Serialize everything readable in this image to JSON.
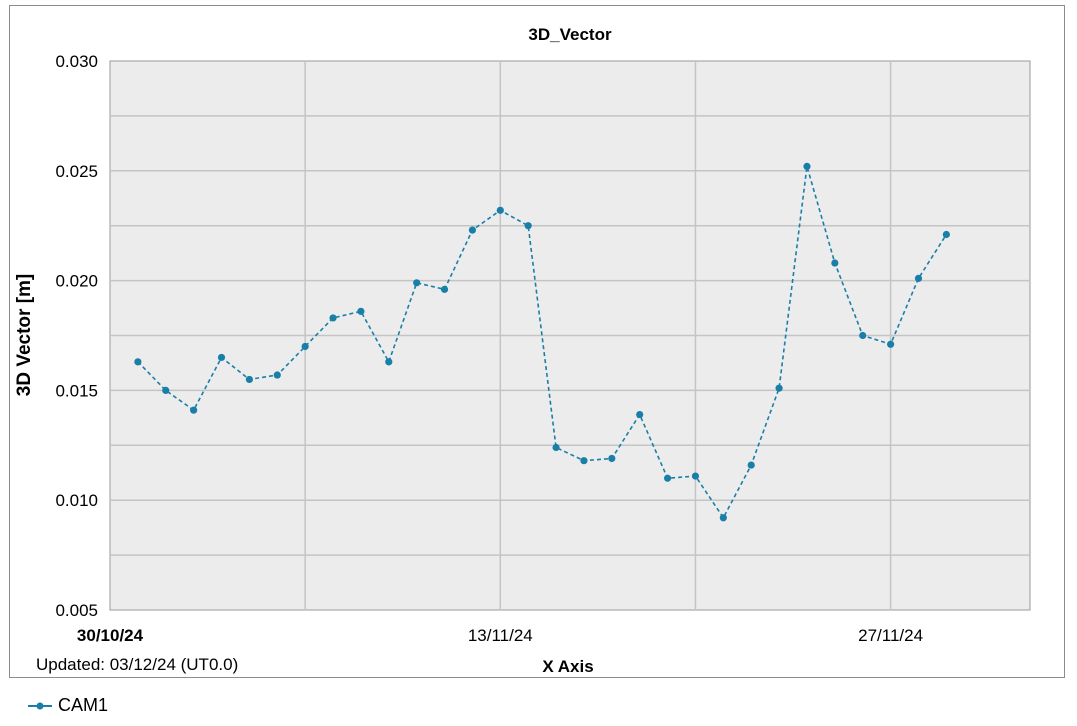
{
  "chart_data": {
    "type": "line",
    "title": "3D_Vector",
    "xlabel": "X Axis",
    "ylabel": "3D Vector [m]",
    "footnote": "Updated: 03/12/24 (UT0.0)",
    "ylim": [
      0.005,
      0.03
    ],
    "y_ticks": [
      "0.005",
      "0.010",
      "0.015",
      "0.020",
      "0.025",
      "0.030"
    ],
    "y_tick_values": [
      0.005,
      0.01,
      0.015,
      0.02,
      0.025,
      0.03
    ],
    "x_tick_labels": [
      "30/10/24",
      "13/11/24",
      "27/11/24"
    ],
    "x_tick_dates": [
      "2024-10-30",
      "2024-11-13",
      "2024-11-27"
    ],
    "xlim": [
      "2024-10-30",
      "2024-12-02"
    ],
    "grid": true,
    "legend_position": "bottom-left",
    "series": [
      {
        "name": "CAM1",
        "color": "#1a7fa8",
        "line_style": "dashed",
        "x": [
          "2024-10-31",
          "2024-11-01",
          "2024-11-02",
          "2024-11-03",
          "2024-11-04",
          "2024-11-05",
          "2024-11-06",
          "2024-11-07",
          "2024-11-08",
          "2024-11-09",
          "2024-11-10",
          "2024-11-11",
          "2024-11-12",
          "2024-11-13",
          "2024-11-14",
          "2024-11-15",
          "2024-11-16",
          "2024-11-17",
          "2024-11-18",
          "2024-11-19",
          "2024-11-20",
          "2024-11-21",
          "2024-11-22",
          "2024-11-23",
          "2024-11-24",
          "2024-11-25",
          "2024-11-26",
          "2024-11-27",
          "2024-11-28",
          "2024-11-29"
        ],
        "values": [
          0.0163,
          0.015,
          0.0141,
          0.0165,
          0.0155,
          0.0157,
          0.017,
          0.0183,
          0.0186,
          0.0163,
          0.0199,
          0.0196,
          0.0223,
          0.0232,
          0.0225,
          0.0124,
          0.0118,
          0.0119,
          0.0139,
          0.011,
          0.0111,
          0.0092,
          0.0116,
          0.0151,
          0.0252,
          0.0208,
          0.0175,
          0.0171,
          0.0201,
          0.0221
        ]
      }
    ]
  }
}
